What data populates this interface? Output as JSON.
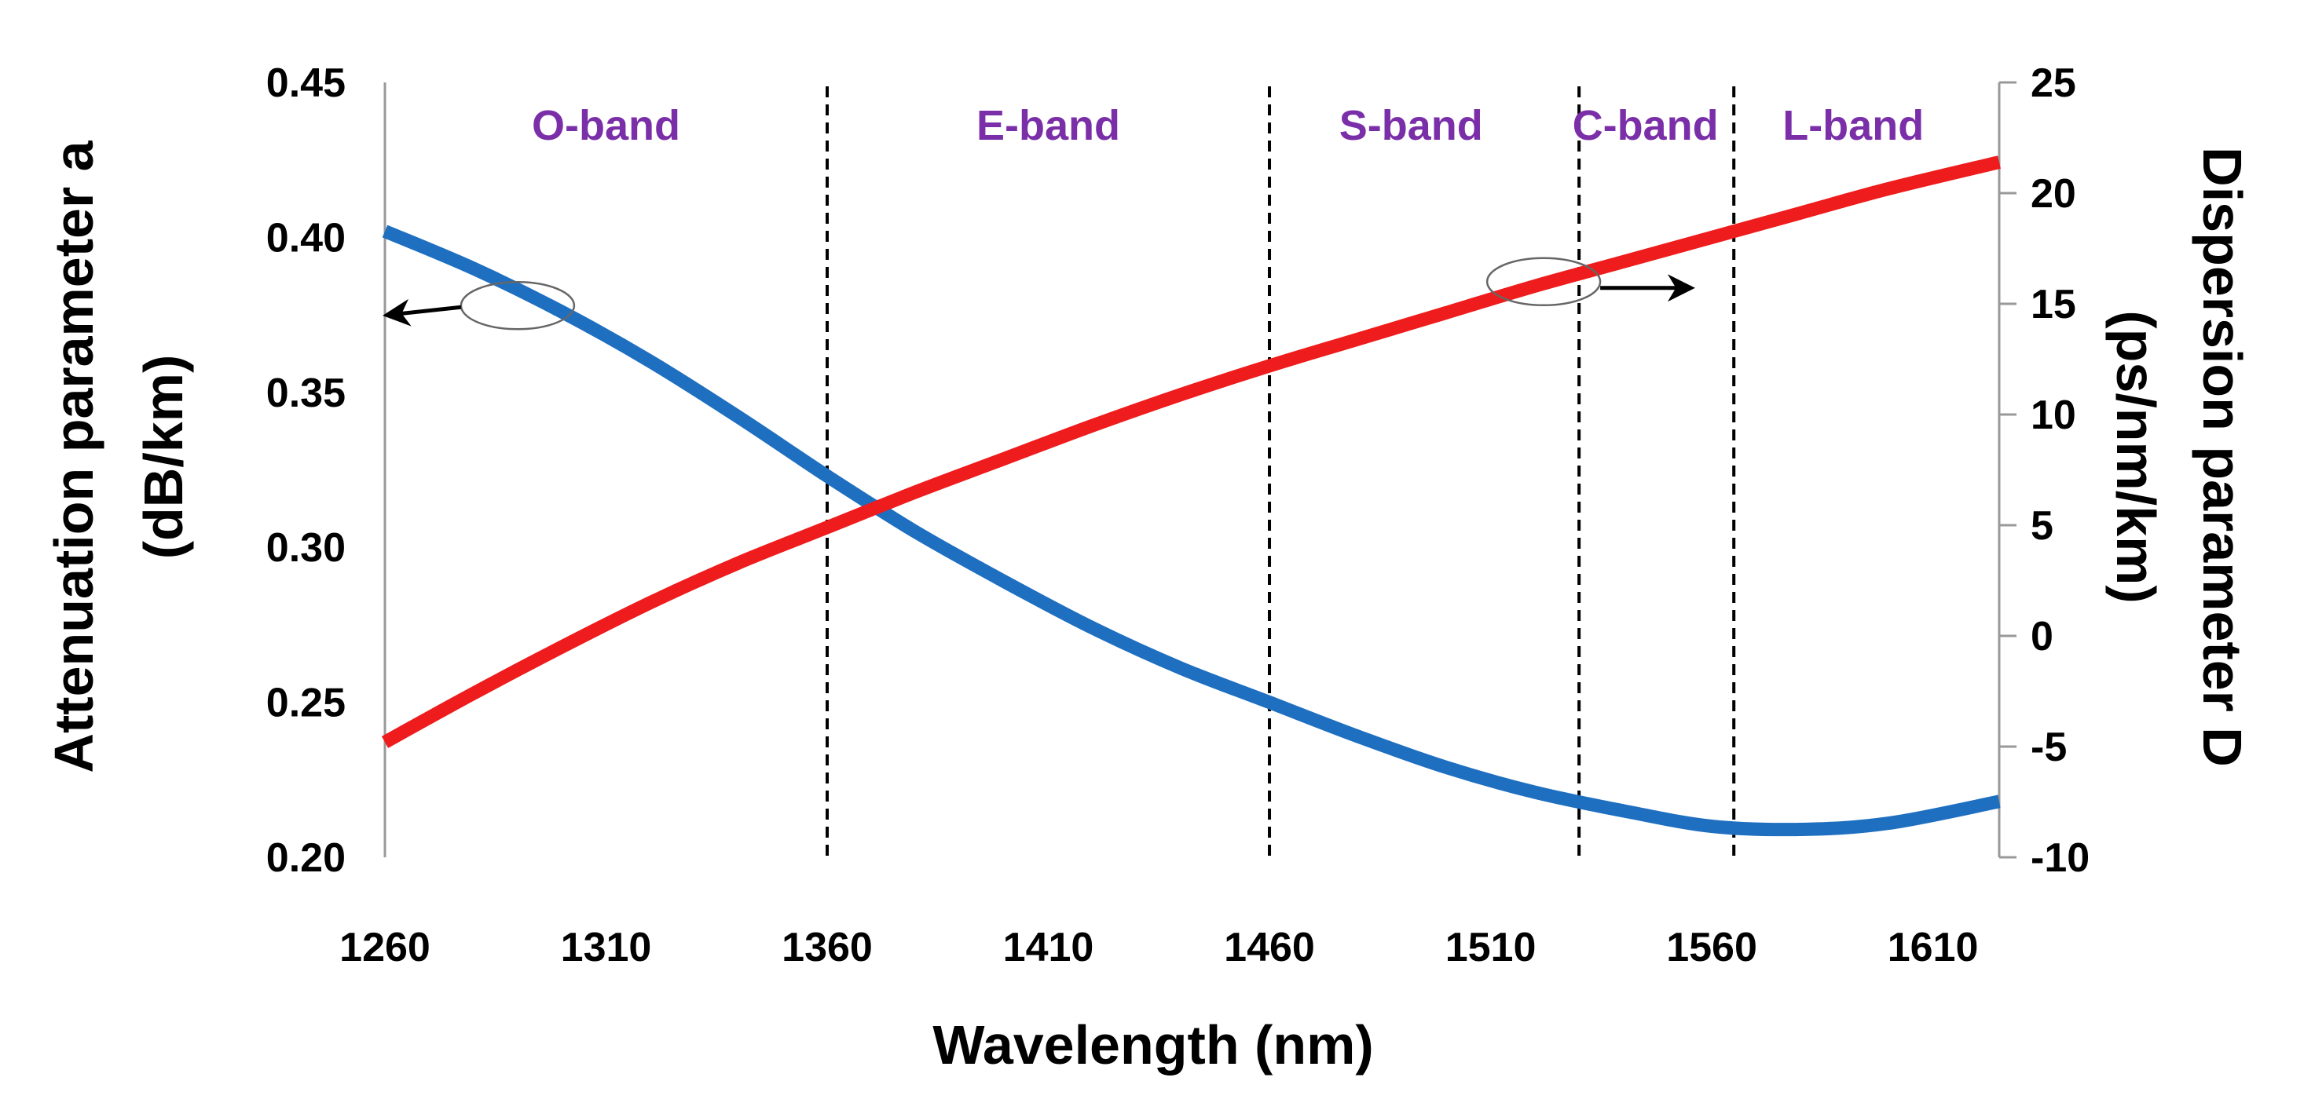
{
  "colors": {
    "attenuation": "#1f6fc0",
    "dispersion": "#ee1c1c",
    "band_label": "#7a2fa8",
    "axis": "#999999",
    "divider": "#000000"
  },
  "chart_data": {
    "type": "line",
    "xlabel": "Wavelength (nm)",
    "ylabel_left_line1": "Attenuation parameter a",
    "ylabel_left_line2": "(dB/km)",
    "ylabel_right_line1": "Dispersion parameter D",
    "ylabel_right_line2": "(ps/nm/km)",
    "xlim": [
      1260,
      1625
    ],
    "ylim_left": [
      0.2,
      0.45
    ],
    "ylim_right": [
      -10,
      25
    ],
    "x_ticks": [
      "1260",
      "1310",
      "1360",
      "1410",
      "1460",
      "1510",
      "1560",
      "1610"
    ],
    "x_tick_values": [
      1260,
      1310,
      1360,
      1410,
      1460,
      1510,
      1560,
      1610
    ],
    "y_left_ticks": [
      "0.20",
      "0.25",
      "0.30",
      "0.35",
      "0.40",
      "0.45"
    ],
    "y_left_tick_values": [
      0.2,
      0.25,
      0.3,
      0.35,
      0.4,
      0.45
    ],
    "y_right_ticks": [
      "-10",
      "-5",
      "0",
      "5",
      "10",
      "15",
      "20",
      "25"
    ],
    "y_right_tick_values": [
      -10,
      -5,
      0,
      5,
      10,
      15,
      20,
      25
    ],
    "band_boundaries": [
      1360,
      1460,
      1530,
      1565
    ],
    "bands": [
      {
        "label": "O-band",
        "center": 1310
      },
      {
        "label": "E-band",
        "center": 1410
      },
      {
        "label": "S-band",
        "center": 1492
      },
      {
        "label": "C-band",
        "center": 1545
      },
      {
        "label": "L-band",
        "center": 1592
      }
    ],
    "series": [
      {
        "name": "Attenuation parameter a",
        "axis": "left",
        "x": [
          1260,
          1280,
          1300,
          1320,
          1340,
          1360,
          1380,
          1400,
          1420,
          1440,
          1460,
          1480,
          1500,
          1520,
          1540,
          1560,
          1580,
          1600,
          1625
        ],
        "y": [
          0.402,
          0.39,
          0.376,
          0.36,
          0.342,
          0.323,
          0.305,
          0.289,
          0.274,
          0.261,
          0.25,
          0.239,
          0.229,
          0.221,
          0.215,
          0.21,
          0.209,
          0.211,
          0.218
        ]
      },
      {
        "name": "Dispersion parameter D",
        "axis": "right",
        "x": [
          1260,
          1280,
          1300,
          1320,
          1340,
          1360,
          1380,
          1400,
          1420,
          1440,
          1460,
          1480,
          1500,
          1520,
          1540,
          1560,
          1580,
          1600,
          1625
        ],
        "y": [
          -4.8,
          -2.6,
          -0.5,
          1.5,
          3.3,
          4.9,
          6.5,
          8.0,
          9.5,
          10.9,
          12.2,
          13.4,
          14.6,
          15.8,
          16.9,
          18.0,
          19.1,
          20.2,
          21.4
        ]
      }
    ]
  }
}
